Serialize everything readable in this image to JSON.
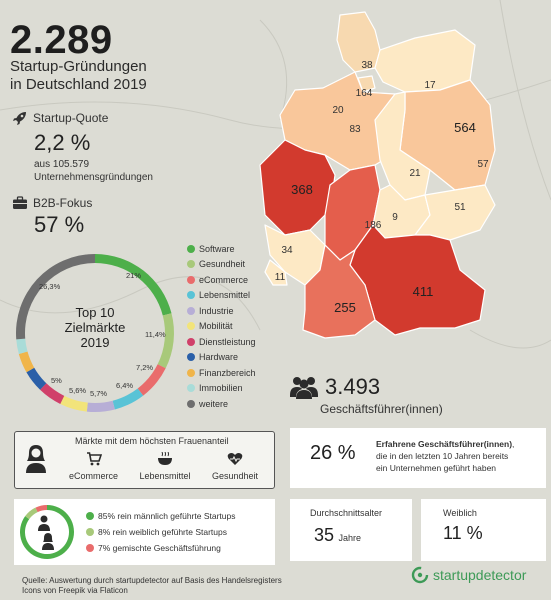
{
  "header": {
    "count": "2.289",
    "subtitle_line1": "Startup-Gründungen",
    "subtitle_line2": "in Deutschland 2019"
  },
  "quote": {
    "label": "Startup-Quote",
    "value": "2,2 %",
    "note_line1": "aus 105.579",
    "note_line2": "Unternehmensgründungen",
    "icon": "rocket-icon"
  },
  "b2b": {
    "label": "B2B-Fokus",
    "value": "57 %",
    "icon": "briefcase-icon"
  },
  "donut": {
    "title_line1": "Top 10",
    "title_line2": "Zielmärkte",
    "title_line3": "2019",
    "labels": [
      "21%",
      "11,4%",
      "7,2%",
      "6,4%",
      "5,7%",
      "5,6%",
      "5%",
      "26,3%"
    ]
  },
  "legend": [
    {
      "label": "Software",
      "color": "#4daf4a"
    },
    {
      "label": "Gesundheit",
      "color": "#a8c97a"
    },
    {
      "label": "eCommerce",
      "color": "#e96c6c"
    },
    {
      "label": "Lebensmittel",
      "color": "#59c3d6"
    },
    {
      "label": "Industrie",
      "color": "#b7aed6"
    },
    {
      "label": "Mobilität",
      "color": "#f2e47a"
    },
    {
      "label": "Dienstleistung",
      "color": "#d0406a"
    },
    {
      "label": "Hardware",
      "color": "#2a5fa8"
    },
    {
      "label": "Finanzbereich",
      "color": "#f0b54a"
    },
    {
      "label": "Immobilien",
      "color": "#a9dcd8"
    },
    {
      "label": "weitere",
      "color": "#6e6e6e"
    }
  ],
  "map": {
    "states": [
      {
        "value": "38",
        "color": "#f7d9b0"
      },
      {
        "value": "164",
        "color": "#f7d9b0"
      },
      {
        "value": "17",
        "color": "#fde9c5"
      },
      {
        "value": "20",
        "color": "#f9c79b"
      },
      {
        "value": "83",
        "color": "#f9c79b"
      },
      {
        "value": "564",
        "color": "#d23a2e"
      },
      {
        "value": "57",
        "color": "#f9c79b"
      },
      {
        "value": "21",
        "color": "#fde9c5"
      },
      {
        "value": "368",
        "color": "#d23a2e"
      },
      {
        "value": "186",
        "color": "#e45e4c"
      },
      {
        "value": "9",
        "color": "#fde9c5"
      },
      {
        "value": "51",
        "color": "#fde9c5"
      },
      {
        "value": "34",
        "color": "#fde9c5"
      },
      {
        "value": "11",
        "color": "#fde9c5"
      },
      {
        "value": "411",
        "color": "#d23a2e"
      },
      {
        "value": "255",
        "color": "#e8715c"
      }
    ]
  },
  "ceo": {
    "count": "3.493",
    "label": "Geschäftsführer(innen)",
    "icon": "people-icon"
  },
  "women_markets": {
    "title": "Märkte mit dem höchsten Frauenanteil",
    "items": [
      {
        "label": "eCommerce",
        "icon": "cart-icon"
      },
      {
        "label": "Lebensmittel",
        "icon": "bowl-icon"
      },
      {
        "label": "Gesundheit",
        "icon": "heart-icon"
      }
    ],
    "icon": "woman-icon"
  },
  "experienced": {
    "value": "26 %",
    "bold": "Erfahrene Geschäftsführer(innen)",
    "text_line1": ",",
    "text_line2": "die in den letzten 10 Jahren bereits",
    "text_line3": "ein Unternehmen geführt haben"
  },
  "gender": {
    "items": [
      {
        "label": "85% rein männlich geführte Startups",
        "color": "#4daf4a"
      },
      {
        "label": "8% rein weiblich geführte Startups",
        "color": "#a8c97a"
      },
      {
        "label": "7% gemischte Geschäftsführung",
        "color": "#e96c6c"
      }
    ],
    "share": [
      85,
      8,
      7
    ]
  },
  "age": {
    "label": "Durchschnittsalter",
    "value": "35",
    "unit": "Jahre"
  },
  "female": {
    "label": "Weiblich",
    "value": "11 %"
  },
  "footer": {
    "line1": "Quelle: Auswertung durch startupdetector auf Basis des Handelsregisters",
    "line2": "Icons von Freepik via Flaticon",
    "brand": "startupdetector"
  }
}
